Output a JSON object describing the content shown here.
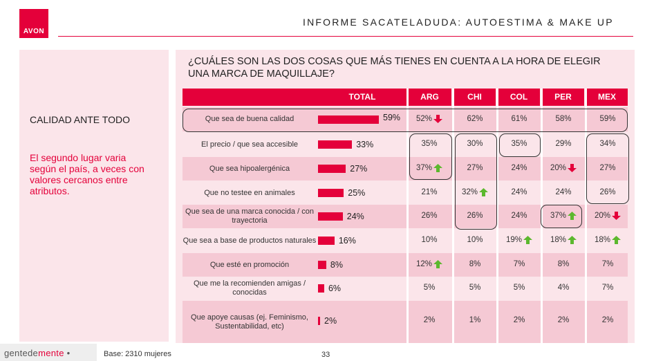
{
  "brand": "AVON",
  "report_title": "INFORME SACATELADUDA: AUTOESTIMA  & MAKE UP",
  "left_heading": "CALIDAD ANTE TODO",
  "left_text": "El segundo lugar varia según el país, a veces con valores cercanos entre atributos.",
  "question": "¿CUÁLES SON LAS DOS COSAS QUE MÁS TIENES EN CUENTA A LA HORA DE ELEGIR UNA MARCA DE MAQUILLAJE?",
  "footer": {
    "logo_main": "gentede",
    "logo_accent": "mente",
    "logo_dot": " •",
    "base": "Base: 2310 mujeres",
    "page": "33"
  },
  "colors": {
    "accent": "#e4003a",
    "band": "#f5c9d4",
    "panel": "#fbe5ea",
    "arrow_up": "#5cb82e",
    "arrow_down": "#e4003a"
  },
  "chart_data": {
    "type": "table",
    "columns": [
      "TOTAL",
      "ARG",
      "CHI",
      "COL",
      "PER",
      "MEX"
    ],
    "total_scale": [
      0,
      100
    ],
    "rows": [
      {
        "label": "Que sea de buena calidad",
        "total": 59,
        "total_label": "59%",
        "cells": [
          {
            "v": "52%",
            "arrow": "down"
          },
          {
            "v": "62%"
          },
          {
            "v": "61%"
          },
          {
            "v": "58%"
          },
          {
            "v": "59%"
          }
        ]
      },
      {
        "label": "El precio / que sea accesible",
        "total": 33,
        "total_label": "33%",
        "cells": [
          {
            "v": "35%"
          },
          {
            "v": "30%"
          },
          {
            "v": "35%"
          },
          {
            "v": "29%"
          },
          {
            "v": "34%"
          }
        ]
      },
      {
        "label": "Que sea hipoalergénica",
        "total": 27,
        "total_label": "27%",
        "cells": [
          {
            "v": "37%",
            "arrow": "up"
          },
          {
            "v": "27%"
          },
          {
            "v": "24%"
          },
          {
            "v": "20%",
            "arrow": "down"
          },
          {
            "v": "27%"
          }
        ]
      },
      {
        "label": "Que no testee en animales",
        "total": 25,
        "total_label": "25%",
        "cells": [
          {
            "v": "21%"
          },
          {
            "v": "32%",
            "arrow": "up"
          },
          {
            "v": "24%"
          },
          {
            "v": "24%"
          },
          {
            "v": "26%"
          }
        ]
      },
      {
        "label": "Que sea de una marca conocida / con trayectoria",
        "total": 24,
        "total_label": "24%",
        "cells": [
          {
            "v": "26%"
          },
          {
            "v": "26%"
          },
          {
            "v": "24%"
          },
          {
            "v": "37%",
            "arrow": "up"
          },
          {
            "v": "20%",
            "arrow": "down"
          }
        ]
      },
      {
        "label": "Que sea a base de productos naturales",
        "total": 16,
        "total_label": "16%",
        "cells": [
          {
            "v": "10%"
          },
          {
            "v": "10%"
          },
          {
            "v": "19%",
            "arrow": "up"
          },
          {
            "v": "18%",
            "arrow": "up"
          },
          {
            "v": "18%",
            "arrow": "up"
          }
        ]
      },
      {
        "label": "Que esté en promoción",
        "total": 8,
        "total_label": "8%",
        "cells": [
          {
            "v": "12%",
            "arrow": "up"
          },
          {
            "v": "8%"
          },
          {
            "v": "7%"
          },
          {
            "v": "8%"
          },
          {
            "v": "7%"
          }
        ]
      },
      {
        "label": "Que me la recomienden amigas / conocidas",
        "total": 6,
        "total_label": "6%",
        "cells": [
          {
            "v": "5%"
          },
          {
            "v": "5%"
          },
          {
            "v": "5%"
          },
          {
            "v": "4%"
          },
          {
            "v": "7%"
          }
        ]
      },
      {
        "label": "Que apoye causas (ej. Feminismo, Sustentabilidad, etc)",
        "total": 2,
        "total_label": "2%",
        "cells": [
          {
            "v": "2%"
          },
          {
            "v": "1%"
          },
          {
            "v": "2%"
          },
          {
            "v": "2%"
          },
          {
            "v": "2%"
          }
        ]
      }
    ]
  }
}
